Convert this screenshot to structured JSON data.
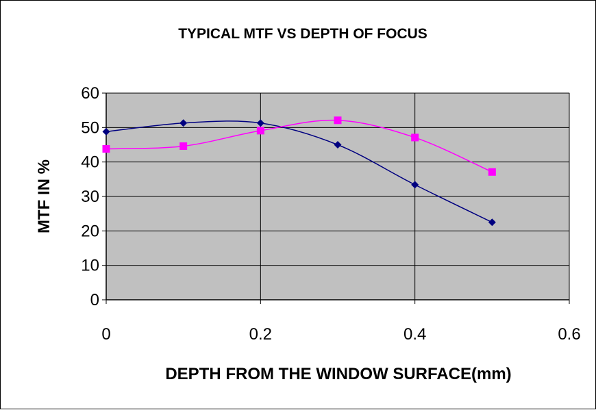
{
  "chart_data": {
    "type": "line",
    "title": "TYPICAL MTF VS DEPTH OF FOCUS",
    "xlabel": "DEPTH FROM THE WINDOW SURFACE(mm)",
    "ylabel": "MTF IN %",
    "xlim": [
      0,
      0.6
    ],
    "ylim": [
      0,
      60
    ],
    "xticks": [
      "0",
      "0.2",
      "0.4",
      "0.6"
    ],
    "yticks": [
      "0",
      "10",
      "20",
      "30",
      "40",
      "50",
      "60"
    ],
    "grid": true,
    "plot_background": "#c0c0c0",
    "smoothed": true,
    "series": [
      {
        "color": "#000080",
        "marker": "diamond",
        "x": [
          0,
          0.1,
          0.2,
          0.3,
          0.4,
          0.5
        ],
        "y": [
          48.8,
          51.3,
          51.3,
          45.0,
          33.4,
          22.5
        ]
      },
      {
        "color": "#ff00ff",
        "marker": "square",
        "x": [
          0,
          0.1,
          0.2,
          0.3,
          0.4,
          0.5
        ],
        "y": [
          43.8,
          44.6,
          49.1,
          52.1,
          47.1,
          37.1
        ]
      }
    ]
  }
}
